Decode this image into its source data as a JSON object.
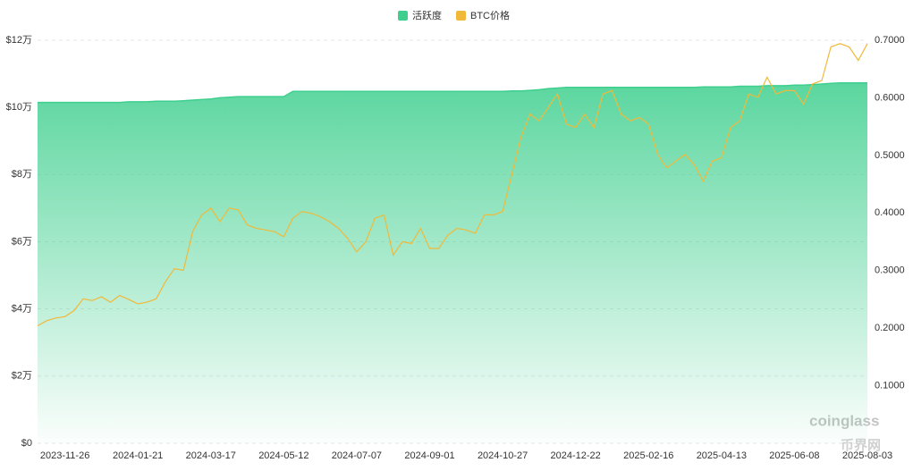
{
  "chart_data": {
    "type": "line",
    "categories": [
      null,
      null,
      null,
      "2023-11-26",
      null,
      null,
      null,
      null,
      null,
      null,
      null,
      "2024-01-21",
      null,
      null,
      null,
      null,
      null,
      null,
      null,
      "2024-03-17",
      null,
      null,
      null,
      null,
      null,
      null,
      null,
      "2024-05-12",
      null,
      null,
      null,
      null,
      null,
      null,
      null,
      "2024-07-07",
      null,
      null,
      null,
      null,
      null,
      null,
      null,
      "2024-09-01",
      null,
      null,
      null,
      null,
      null,
      null,
      null,
      "2024-10-27",
      null,
      null,
      null,
      null,
      null,
      null,
      null,
      "2024-12-22",
      null,
      null,
      null,
      null,
      null,
      null,
      null,
      "2025-02-16",
      null,
      null,
      null,
      null,
      null,
      null,
      null,
      "2025-04-13",
      null,
      null,
      null,
      null,
      null,
      null,
      null,
      "2025-06-08",
      null,
      null,
      null,
      null,
      null,
      null,
      null,
      "2025-08-03"
    ],
    "series": [
      {
        "name": "活跃度",
        "color": "#3ecf8e",
        "axis": "y2",
        "values": [
          0.592,
          0.592,
          0.592,
          0.592,
          0.592,
          0.592,
          0.592,
          0.592,
          0.592,
          0.592,
          0.593,
          0.593,
          0.593,
          0.594,
          0.594,
          0.594,
          0.595,
          0.596,
          0.597,
          0.598,
          0.6,
          0.601,
          0.602,
          0.602,
          0.602,
          0.602,
          0.602,
          0.602,
          0.611,
          0.611,
          0.611,
          0.611,
          0.611,
          0.611,
          0.611,
          0.611,
          0.611,
          0.611,
          0.611,
          0.611,
          0.611,
          0.611,
          0.611,
          0.611,
          0.611,
          0.611,
          0.611,
          0.611,
          0.611,
          0.611,
          0.611,
          0.611,
          0.612,
          0.612,
          0.613,
          0.614,
          0.616,
          0.617,
          0.618,
          0.618,
          0.618,
          0.618,
          0.618,
          0.618,
          0.618,
          0.618,
          0.618,
          0.618,
          0.618,
          0.618,
          0.618,
          0.618,
          0.618,
          0.619,
          0.619,
          0.619,
          0.619,
          0.62,
          0.62,
          0.62,
          0.621,
          0.621,
          0.621,
          0.622,
          0.622,
          0.623,
          0.624,
          0.625,
          0.626,
          0.626,
          0.626,
          0.626
        ]
      },
      {
        "name": "BTC价格",
        "color": "#f0b93a",
        "values": [
          35000,
          36500,
          37300,
          37700,
          39500,
          43000,
          42500,
          43600,
          42000,
          44000,
          42800,
          41500,
          42000,
          43000,
          48000,
          52000,
          51500,
          63000,
          68000,
          70000,
          66000,
          70000,
          69500,
          65000,
          64000,
          63500,
          63000,
          61500,
          67000,
          69000,
          68500,
          67500,
          66000,
          64000,
          61000,
          57000,
          60000,
          67000,
          68000,
          56000,
          60000,
          59500,
          64000,
          58000,
          58000,
          62000,
          64000,
          63500,
          62500,
          68000,
          68000,
          69000,
          80000,
          91000,
          98000,
          96000,
          100000,
          104000,
          95000,
          94000,
          98000,
          94000,
          104000,
          105000,
          98000,
          96000,
          97000,
          95000,
          86000,
          82000,
          84000,
          86000,
          83000,
          78000,
          84000,
          85000,
          94000,
          96000,
          104000,
          103000,
          109000,
          104000,
          105000,
          105000,
          101000,
          107000,
          108000,
          118000,
          119000,
          118000,
          114000,
          119000
        ]
      }
    ],
    "ylim": [
      0,
      120000
    ],
    "yticks": [
      {
        "value": 0,
        "label": "$0"
      },
      {
        "value": 20000,
        "label": "$2万"
      },
      {
        "value": 40000,
        "label": "$4万"
      },
      {
        "value": 60000,
        "label": "$6万"
      },
      {
        "value": 80000,
        "label": "$8万"
      },
      {
        "value": 100000,
        "label": "$10万"
      },
      {
        "value": 120000,
        "label": "$12万"
      }
    ],
    "y2lim": [
      0,
      0.7
    ],
    "y2ticks": [
      {
        "value": 0.1,
        "label": "0.1000"
      },
      {
        "value": 0.2,
        "label": "0.2000"
      },
      {
        "value": 0.3,
        "label": "0.3000"
      },
      {
        "value": 0.4,
        "label": "0.4000"
      },
      {
        "value": 0.5,
        "label": "0.5000"
      },
      {
        "value": 0.6,
        "label": "0.6000"
      },
      {
        "value": 0.7,
        "label": "0.7000"
      }
    ],
    "grid": true,
    "legend": "top",
    "watermark": "coinglass",
    "logo": "币界网"
  }
}
